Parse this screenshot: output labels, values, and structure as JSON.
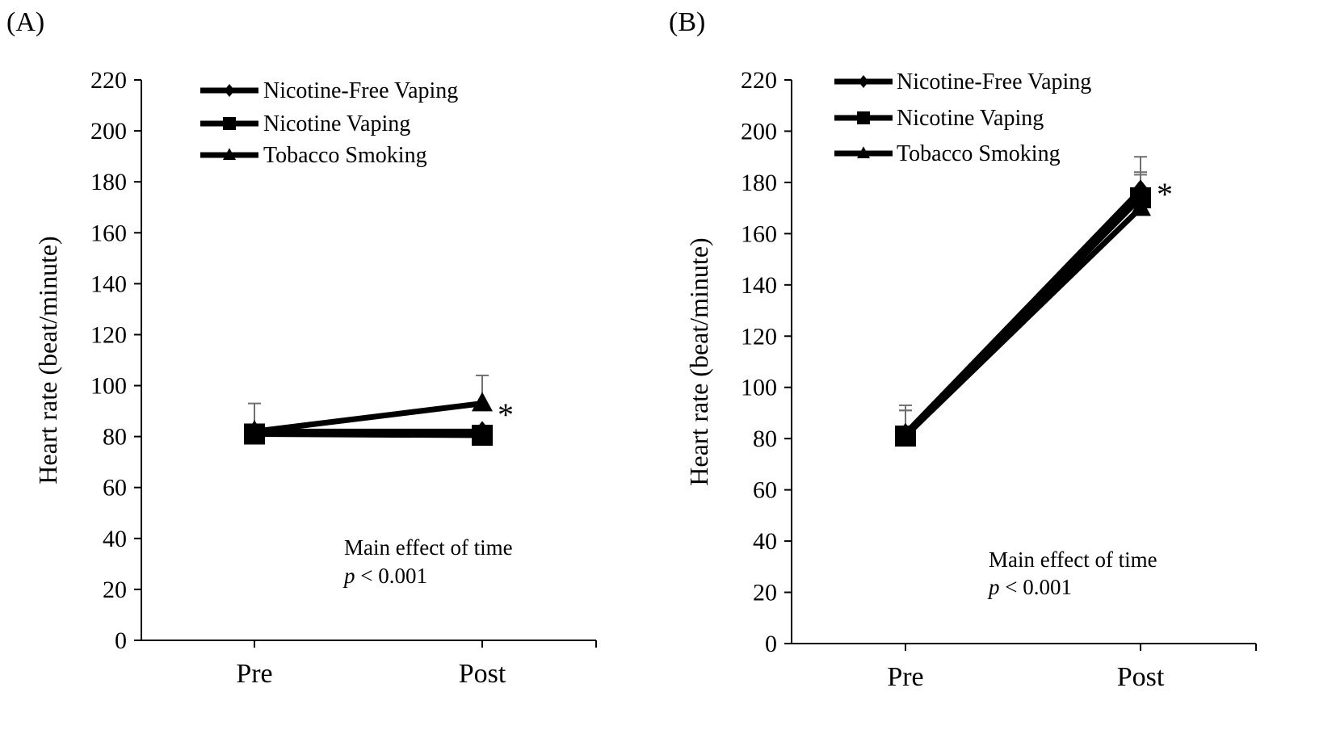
{
  "chart_data": [
    {
      "type": "line",
      "panel_label": "(A)",
      "ylabel": "Heart rate (beat/minute)",
      "ylim": [
        0,
        220
      ],
      "yticks": [
        0,
        20,
        40,
        60,
        80,
        100,
        120,
        140,
        160,
        180,
        200,
        220
      ],
      "categories": [
        "Pre",
        "Post"
      ],
      "legend": {
        "placement": "top-left"
      },
      "series": [
        {
          "name": "Nicotine-Free Vaping",
          "marker": "diamond",
          "values": [
            82,
            82
          ],
          "error": [
            11,
            0
          ]
        },
        {
          "name": "Nicotine Vaping",
          "marker": "square",
          "values": [
            81,
            80.5
          ],
          "error": [
            0,
            0
          ]
        },
        {
          "name": "Tobacco Smoking",
          "marker": "triangle",
          "values": [
            82,
            93
          ],
          "error": [
            0,
            11
          ]
        }
      ],
      "annotation": {
        "line1": "Main effect of time",
        "p_italic": "p",
        "p_rest": " < 0.001"
      },
      "significance": "*"
    },
    {
      "type": "line",
      "panel_label": "(B)",
      "ylabel": "Heart rate (beat/minute)",
      "ylim": [
        0,
        220
      ],
      "yticks": [
        0,
        20,
        40,
        60,
        80,
        100,
        120,
        140,
        160,
        180,
        200,
        220
      ],
      "categories": [
        "Pre",
        "Post"
      ],
      "legend": {
        "placement": "top-left"
      },
      "series": [
        {
          "name": "Nicotine-Free Vaping",
          "marker": "diamond",
          "values": [
            82,
            177
          ],
          "error": [
            11,
            13
          ]
        },
        {
          "name": "Nicotine Vaping",
          "marker": "square",
          "values": [
            81,
            174
          ],
          "error": [
            10,
            10
          ]
        },
        {
          "name": "Tobacco Smoking",
          "marker": "triangle",
          "values": [
            81,
            170
          ],
          "error": [
            10,
            13
          ]
        }
      ],
      "annotation": {
        "line1": "Main effect of time",
        "p_italic": "p",
        "p_rest": " < 0.001"
      },
      "significance": "*"
    }
  ]
}
